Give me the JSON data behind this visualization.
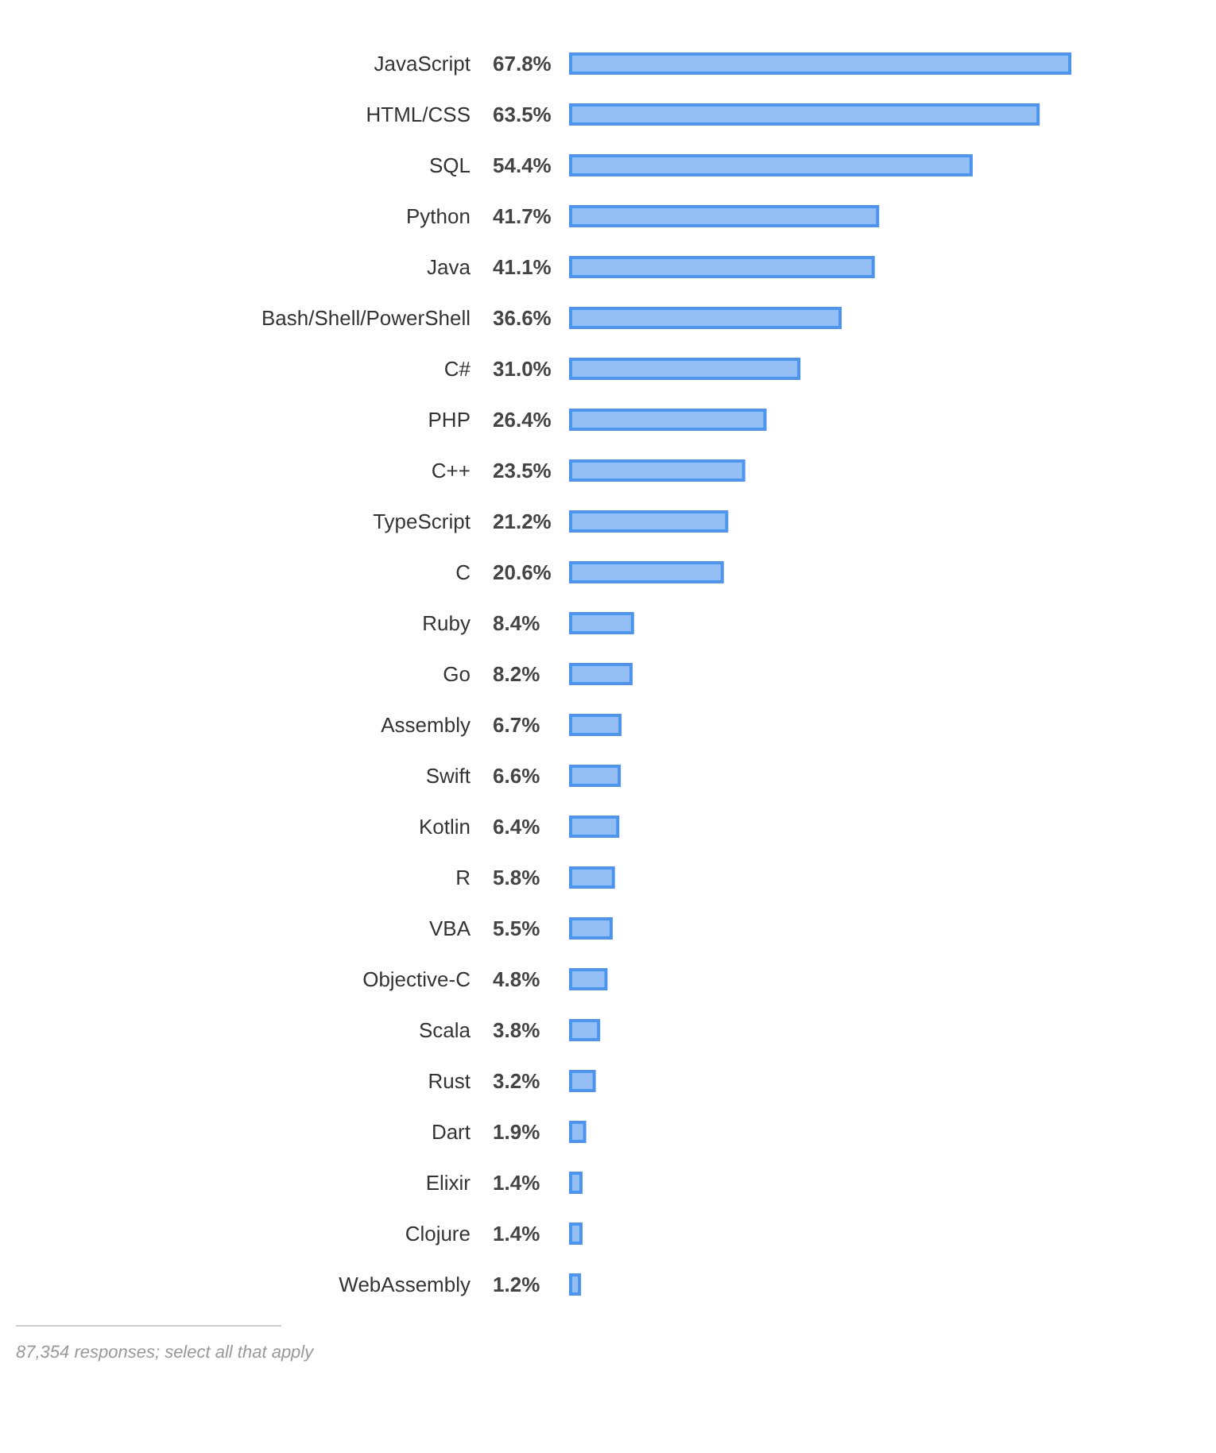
{
  "chart_data": {
    "type": "bar",
    "orientation": "horizontal",
    "categories": [
      "JavaScript",
      "HTML/CSS",
      "SQL",
      "Python",
      "Java",
      "Bash/Shell/PowerShell",
      "C#",
      "PHP",
      "C++",
      "TypeScript",
      "C",
      "Ruby",
      "Go",
      "Assembly",
      "Swift",
      "Kotlin",
      "R",
      "VBA",
      "Objective-C",
      "Scala",
      "Rust",
      "Dart",
      "Elixir",
      "Clojure",
      "WebAssembly"
    ],
    "values": [
      67.8,
      63.5,
      54.4,
      41.7,
      41.1,
      36.6,
      31.0,
      26.4,
      23.5,
      21.2,
      20.6,
      8.4,
      8.2,
      6.7,
      6.6,
      6.4,
      5.8,
      5.5,
      4.8,
      3.8,
      3.2,
      1.9,
      1.4,
      1.4,
      1.2
    ],
    "value_labels": [
      "67.8%",
      "63.5%",
      "54.4%",
      "41.7%",
      "41.1%",
      "36.6%",
      "31.0%",
      "26.4%",
      "23.5%",
      "21.2%",
      "20.6%",
      "8.4%",
      "8.2%",
      "6.7%",
      "6.6%",
      "6.4%",
      "5.8%",
      "5.5%",
      "4.8%",
      "3.8%",
      "3.2%",
      "1.9%",
      "1.4%",
      "1.4%",
      "1.2%"
    ],
    "color": "#4d94ef",
    "annotations": [
      "87,354 responses; select all that apply"
    ]
  }
}
